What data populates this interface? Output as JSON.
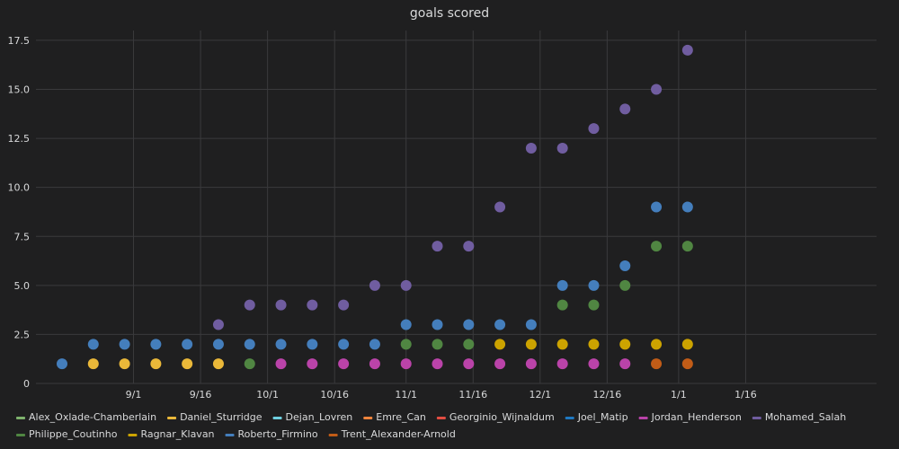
{
  "chart_data": {
    "type": "scatter",
    "title": "goals scored",
    "xlabel": "",
    "ylabel": "",
    "xlim": [
      "2018-08-16",
      "2019-01-31"
    ],
    "ylim": [
      0,
      18
    ],
    "x_ticks": [
      {
        "date": "2018-09-01",
        "label": "9/1"
      },
      {
        "date": "2018-09-16",
        "label": "9/16"
      },
      {
        "date": "2018-10-01",
        "label": "10/1"
      },
      {
        "date": "2018-10-16",
        "label": "10/16"
      },
      {
        "date": "2018-11-01",
        "label": "11/1"
      },
      {
        "date": "2018-11-16",
        "label": "11/16"
      },
      {
        "date": "2018-12-01",
        "label": "12/1"
      },
      {
        "date": "2018-12-16",
        "label": "12/16"
      },
      {
        "date": "2019-01-01",
        "label": "1/1"
      },
      {
        "date": "2019-01-16",
        "label": "1/16"
      }
    ],
    "y_ticks": [
      {
        "value": 0,
        "label": "0"
      },
      {
        "value": 2.5,
        "label": "2.5"
      },
      {
        "value": 5,
        "label": "5.0"
      },
      {
        "value": 7.5,
        "label": "7.5"
      },
      {
        "value": 10,
        "label": "10.0"
      },
      {
        "value": 12.5,
        "label": "12.5"
      },
      {
        "value": 15,
        "label": "15.0"
      },
      {
        "value": 17.5,
        "label": "17.5"
      }
    ],
    "grid": true,
    "legend_position": "bottom",
    "series": [
      {
        "name": "Alex_Oxlade-Chamberlain",
        "color": "#7eb26d",
        "points": []
      },
      {
        "name": "Daniel_Sturridge",
        "color": "#eab839",
        "points": [
          {
            "x": "2018-08-23",
            "y": 1
          },
          {
            "x": "2018-08-30",
            "y": 1
          },
          {
            "x": "2018-09-06",
            "y": 1
          },
          {
            "x": "2018-09-13",
            "y": 1
          },
          {
            "x": "2018-09-20",
            "y": 1
          }
        ]
      },
      {
        "name": "Dejan_Lovren",
        "color": "#6ed0e0",
        "points": []
      },
      {
        "name": "Emre_Can",
        "color": "#ef843c",
        "points": []
      },
      {
        "name": "Georginio_Wijnaldum",
        "color": "#e24d42",
        "points": []
      },
      {
        "name": "Joel_Matip",
        "color": "#1f78c1",
        "points": []
      },
      {
        "name": "Jordan_Henderson",
        "color": "#ba43a9",
        "points": [
          {
            "x": "2018-10-04",
            "y": 1
          },
          {
            "x": "2018-10-11",
            "y": 1
          },
          {
            "x": "2018-10-18",
            "y": 1
          },
          {
            "x": "2018-10-25",
            "y": 1
          },
          {
            "x": "2018-11-01",
            "y": 1
          },
          {
            "x": "2018-11-08",
            "y": 1
          },
          {
            "x": "2018-11-15",
            "y": 1
          },
          {
            "x": "2018-11-22",
            "y": 1
          },
          {
            "x": "2018-11-29",
            "y": 1
          },
          {
            "x": "2018-12-06",
            "y": 1
          },
          {
            "x": "2018-12-13",
            "y": 1
          },
          {
            "x": "2018-12-20",
            "y": 1
          }
        ]
      },
      {
        "name": "Mohamed_Salah",
        "color": "#705da0",
        "points": [
          {
            "x": "2018-09-20",
            "y": 3
          },
          {
            "x": "2018-09-27",
            "y": 4
          },
          {
            "x": "2018-10-04",
            "y": 4
          },
          {
            "x": "2018-10-11",
            "y": 4
          },
          {
            "x": "2018-10-18",
            "y": 4
          },
          {
            "x": "2018-10-25",
            "y": 5
          },
          {
            "x": "2018-11-01",
            "y": 5
          },
          {
            "x": "2018-11-08",
            "y": 7
          },
          {
            "x": "2018-11-15",
            "y": 7
          },
          {
            "x": "2018-11-22",
            "y": 9
          },
          {
            "x": "2018-11-29",
            "y": 12
          },
          {
            "x": "2018-12-06",
            "y": 12
          },
          {
            "x": "2018-12-13",
            "y": 13
          },
          {
            "x": "2018-12-20",
            "y": 14
          },
          {
            "x": "2018-12-27",
            "y": 15
          },
          {
            "x": "2019-01-03",
            "y": 17
          }
        ]
      },
      {
        "name": "Philippe_Coutinho",
        "color": "#508642",
        "points": [
          {
            "x": "2018-09-27",
            "y": 1
          },
          {
            "x": "2018-11-01",
            "y": 2
          },
          {
            "x": "2018-11-08",
            "y": 2
          },
          {
            "x": "2018-11-15",
            "y": 2
          },
          {
            "x": "2018-12-06",
            "y": 4
          },
          {
            "x": "2018-12-13",
            "y": 4
          },
          {
            "x": "2018-12-20",
            "y": 5
          },
          {
            "x": "2018-12-27",
            "y": 7
          },
          {
            "x": "2019-01-03",
            "y": 7
          }
        ]
      },
      {
        "name": "Ragnar_Klavan",
        "color": "#cca300",
        "points": [
          {
            "x": "2018-11-22",
            "y": 2
          },
          {
            "x": "2018-11-29",
            "y": 2
          },
          {
            "x": "2018-12-06",
            "y": 2
          },
          {
            "x": "2018-12-13",
            "y": 2
          },
          {
            "x": "2018-12-20",
            "y": 2
          },
          {
            "x": "2018-12-27",
            "y": 2
          },
          {
            "x": "2019-01-03",
            "y": 2
          }
        ]
      },
      {
        "name": "Roberto_Firmino",
        "color": "#447ebc",
        "points": [
          {
            "x": "2018-08-16",
            "y": 1
          },
          {
            "x": "2018-08-23",
            "y": 2
          },
          {
            "x": "2018-08-30",
            "y": 2
          },
          {
            "x": "2018-09-06",
            "y": 2
          },
          {
            "x": "2018-09-13",
            "y": 2
          },
          {
            "x": "2018-09-20",
            "y": 2
          },
          {
            "x": "2018-09-27",
            "y": 2
          },
          {
            "x": "2018-10-04",
            "y": 2
          },
          {
            "x": "2018-10-11",
            "y": 2
          },
          {
            "x": "2018-10-18",
            "y": 2
          },
          {
            "x": "2018-10-25",
            "y": 2
          },
          {
            "x": "2018-11-01",
            "y": 3
          },
          {
            "x": "2018-11-08",
            "y": 3
          },
          {
            "x": "2018-11-15",
            "y": 3
          },
          {
            "x": "2018-11-22",
            "y": 3
          },
          {
            "x": "2018-11-29",
            "y": 3
          },
          {
            "x": "2018-12-06",
            "y": 5
          },
          {
            "x": "2018-12-13",
            "y": 5
          },
          {
            "x": "2018-12-20",
            "y": 6
          },
          {
            "x": "2018-12-27",
            "y": 9
          },
          {
            "x": "2019-01-03",
            "y": 9
          }
        ]
      },
      {
        "name": "Trent_Alexander-Arnold",
        "color": "#c15c17",
        "points": [
          {
            "x": "2018-12-27",
            "y": 1
          },
          {
            "x": "2019-01-03",
            "y": 1
          }
        ]
      }
    ]
  }
}
